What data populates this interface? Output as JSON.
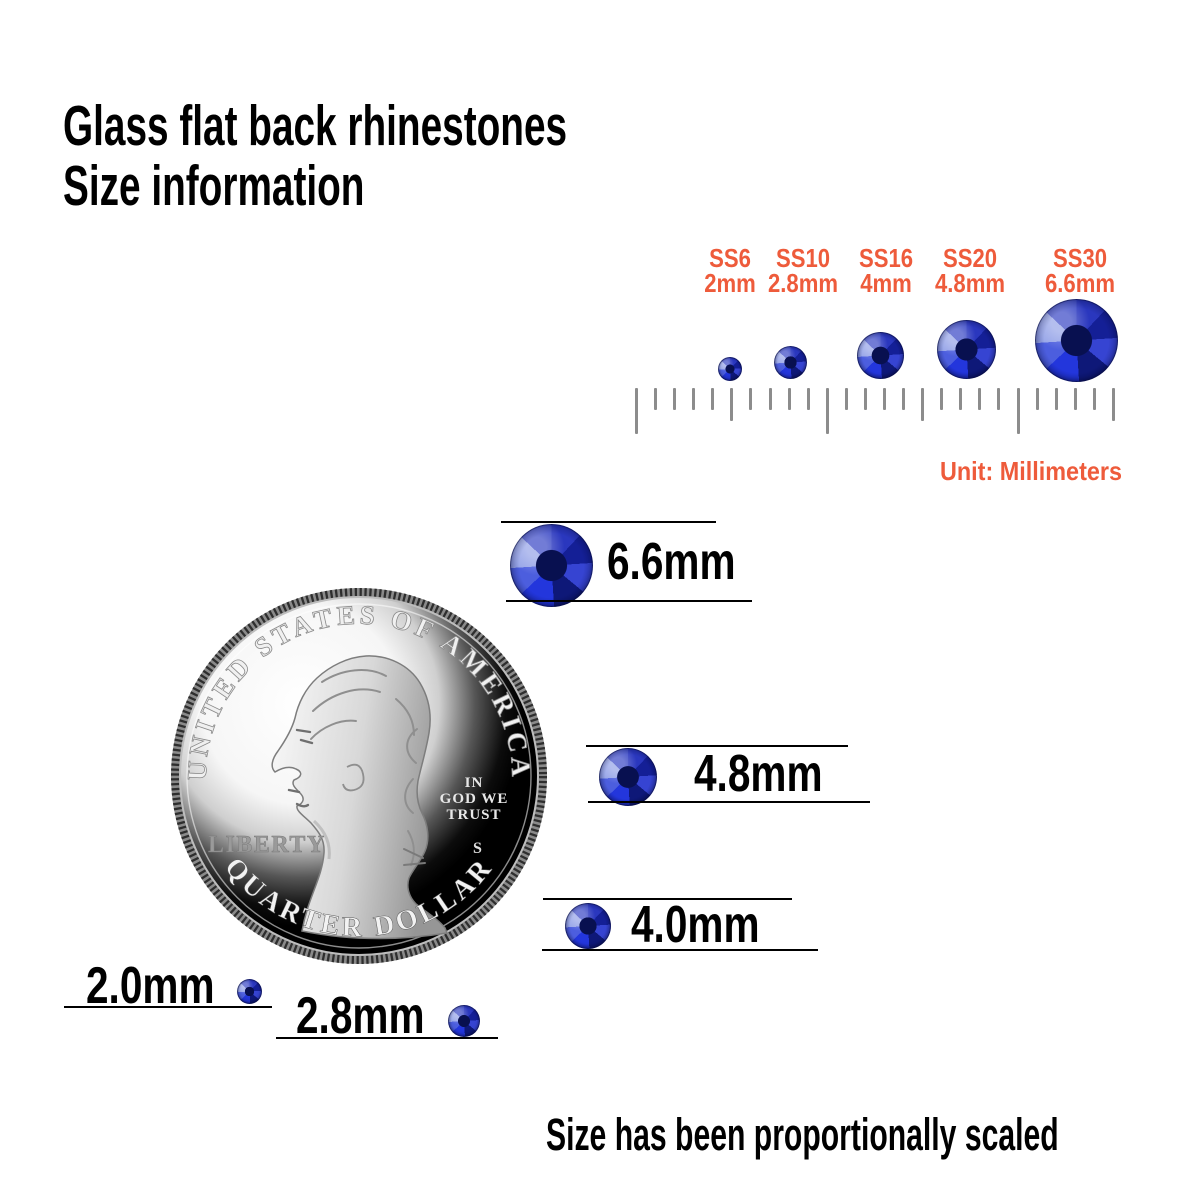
{
  "title": {
    "line1": "Glass flat back rhinestones",
    "line2": "Size information"
  },
  "size_chart": {
    "unit_label": "Unit: Millimeters",
    "ruler": {
      "tick_count": 26
    },
    "items": [
      {
        "code": "SS6",
        "size_mm": "2mm"
      },
      {
        "code": "SS10",
        "size_mm": "2.8mm"
      },
      {
        "code": "SS16",
        "size_mm": "4mm"
      },
      {
        "code": "SS20",
        "size_mm": "4.8mm"
      },
      {
        "code": "SS30",
        "size_mm": "6.6mm"
      }
    ]
  },
  "comparison_rows": [
    {
      "label": "6.6mm"
    },
    {
      "label": "4.8mm"
    },
    {
      "label": "4.0mm"
    },
    {
      "label": "2.0mm"
    },
    {
      "label": "2.8mm"
    }
  ],
  "coin": {
    "top_text": "UNITED STATES OF AMERICA",
    "bottom_text": "QUARTER DOLLAR",
    "left_text": "LIBERTY",
    "motto": [
      "IN",
      "GOD WE",
      "TRUST"
    ],
    "mint_mark": "S"
  },
  "footer_note": "Size has been proportionally scaled",
  "colors": {
    "accent_orange": "#EE5B3B",
    "stone_blue": "#1e2fc4",
    "ruler_gray": "#8c8c8c",
    "text_black": "#000000"
  }
}
